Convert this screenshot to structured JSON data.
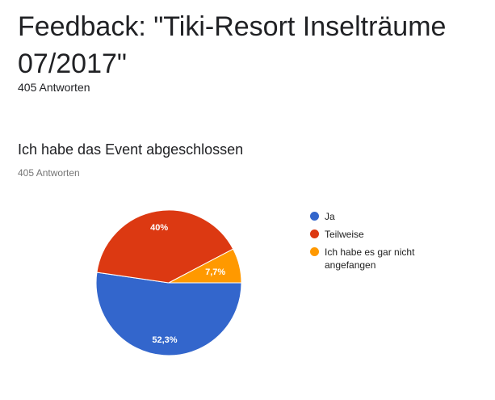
{
  "form": {
    "title": "Feedback: \"Tiki-Resort Inselträume 07/2017\"",
    "response_count": "405 Antworten"
  },
  "question": {
    "title": "Ich habe das Event abgeschlossen",
    "response_count": "405 Antworten"
  },
  "chart_data": {
    "type": "pie",
    "slices": [
      {
        "label": "Ja",
        "value": 52.3,
        "display": "52,3%",
        "color": "#3366cc"
      },
      {
        "label": "Teilweise",
        "value": 40.0,
        "display": "40%",
        "color": "#dc3912"
      },
      {
        "label": "Ich habe es gar nicht angefangen",
        "value": 7.7,
        "display": "7,7%",
        "color": "#ff9900"
      }
    ],
    "legend_position": "right"
  }
}
